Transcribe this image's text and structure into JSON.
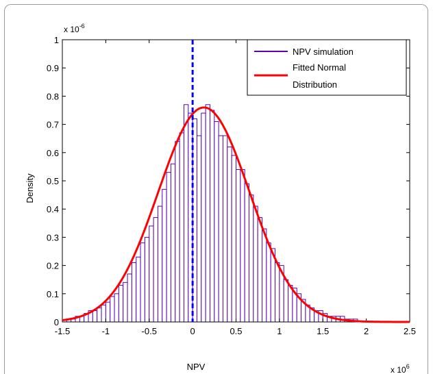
{
  "chart_data": {
    "type": "bar",
    "xlabel": "NPV",
    "ylabel": "Density",
    "x_exponent_label": "x 10",
    "x_exponent_power": "6",
    "y_exponent_label": "x 10",
    "y_exponent_power": "-6",
    "xlim": [
      -1.5,
      2.5
    ],
    "ylim": [
      0,
      1
    ],
    "x_ticks": [
      "-1.5",
      "-1",
      "-0.5",
      "0",
      "0.5",
      "1",
      "1.5",
      "2",
      "2.5"
    ],
    "x_tick_values": [
      -1.5,
      -1,
      -0.5,
      0,
      0.5,
      1,
      1.5,
      2,
      2.5
    ],
    "y_ticks": [
      "0",
      "0.1",
      "0.2",
      "0.3",
      "0.4",
      "0.5",
      "0.6",
      "0.7",
      "0.8",
      "0.9",
      "1"
    ],
    "y_tick_values": [
      0,
      0.1,
      0.2,
      0.3,
      0.4,
      0.5,
      0.6,
      0.7,
      0.8,
      0.9,
      1
    ],
    "histogram": {
      "name": "NPV simulation",
      "color": "#5a00b5",
      "bin_width": 0.05,
      "bin_starts": [
        -1.45,
        -1.4,
        -1.35,
        -1.3,
        -1.25,
        -1.2,
        -1.15,
        -1.1,
        -1.05,
        -1.0,
        -0.95,
        -0.9,
        -0.85,
        -0.8,
        -0.75,
        -0.7,
        -0.65,
        -0.6,
        -0.55,
        -0.5,
        -0.45,
        -0.4,
        -0.35,
        -0.3,
        -0.25,
        -0.2,
        -0.15,
        -0.1,
        -0.05,
        0.0,
        0.05,
        0.1,
        0.15,
        0.2,
        0.25,
        0.3,
        0.35,
        0.4,
        0.45,
        0.5,
        0.55,
        0.6,
        0.65,
        0.7,
        0.75,
        0.8,
        0.85,
        0.9,
        0.95,
        1.0,
        1.05,
        1.1,
        1.15,
        1.2,
        1.25,
        1.3,
        1.35,
        1.4,
        1.45,
        1.5,
        1.55,
        1.6,
        1.65,
        1.7,
        1.75,
        1.8,
        1.85
      ],
      "values": [
        0.01,
        0.01,
        0.02,
        0.02,
        0.03,
        0.04,
        0.04,
        0.05,
        0.06,
        0.07,
        0.09,
        0.1,
        0.13,
        0.14,
        0.17,
        0.21,
        0.23,
        0.28,
        0.3,
        0.34,
        0.37,
        0.41,
        0.47,
        0.53,
        0.56,
        0.64,
        0.67,
        0.77,
        0.74,
        0.72,
        0.66,
        0.74,
        0.77,
        0.75,
        0.71,
        0.66,
        0.66,
        0.62,
        0.59,
        0.54,
        0.54,
        0.49,
        0.45,
        0.41,
        0.37,
        0.33,
        0.28,
        0.26,
        0.21,
        0.2,
        0.15,
        0.13,
        0.12,
        0.1,
        0.08,
        0.06,
        0.05,
        0.04,
        0.04,
        0.03,
        0.02,
        0.02,
        0.02,
        0.02,
        0.01,
        0.01,
        0.01
      ]
    },
    "fitted_curve": {
      "name": "Fitted Normal Distribution",
      "color": "#ff0000",
      "mean": 0.13,
      "peak_density": 0.76,
      "std": 0.525
    },
    "reference_line": {
      "x": 0,
      "color": "#0000ff",
      "style": "dashed"
    },
    "legend": {
      "position": "top-right",
      "entries": [
        "NPV simulation",
        "Fitted Normal",
        "Distribution"
      ]
    }
  }
}
